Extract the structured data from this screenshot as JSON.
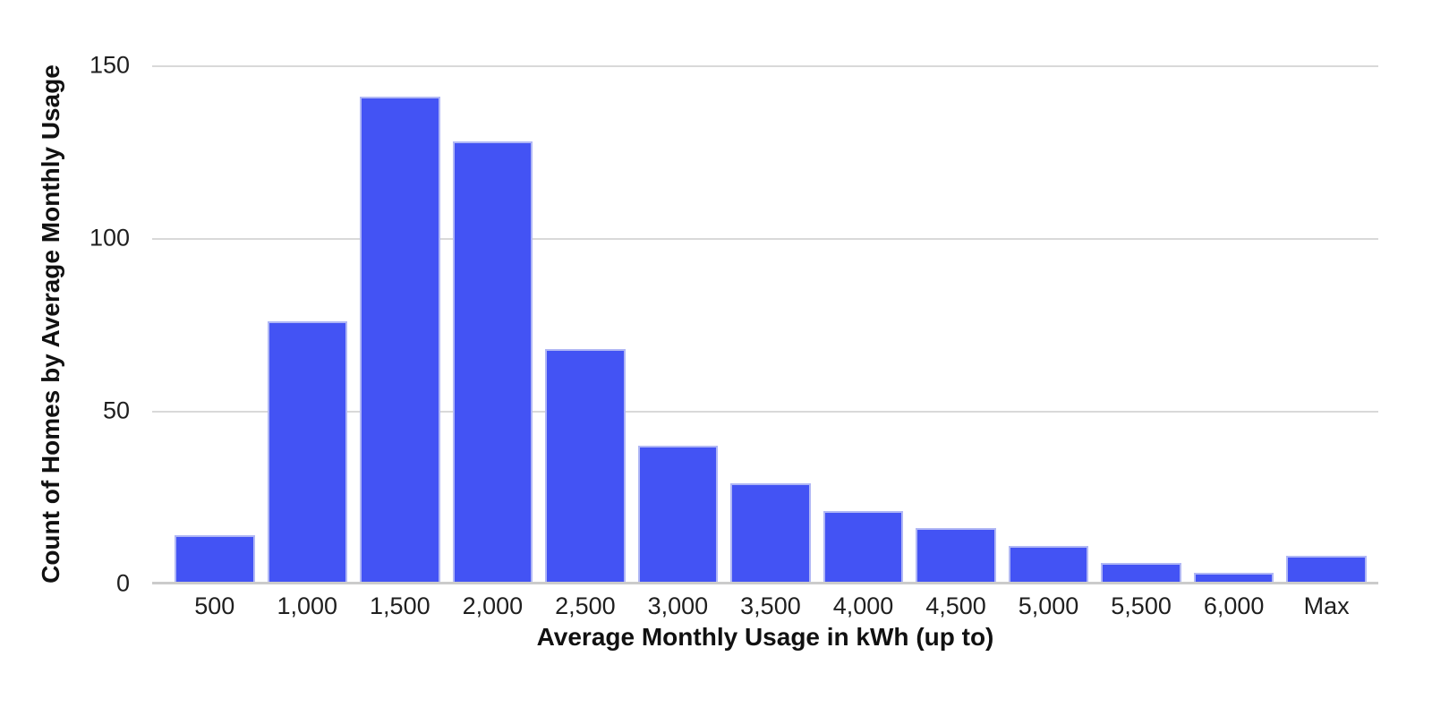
{
  "chart_data": {
    "type": "bar",
    "title": "",
    "categories": [
      "500",
      "1,000",
      "1,500",
      "2,000",
      "2,500",
      "3,000",
      "3,500",
      "4,000",
      "4,500",
      "5,000",
      "5,500",
      "6,000",
      "Max"
    ],
    "values": [
      14,
      76,
      141,
      128,
      68,
      40,
      29,
      21,
      16,
      11,
      6,
      3,
      8
    ],
    "xlabel": "Average Monthly Usage in kWh (up to)",
    "ylabel": "Count of Homes by Average Monthly Usage",
    "ylim": [
      0,
      150
    ],
    "yticks": [
      0,
      50,
      100,
      150
    ],
    "ytick_labels": [
      "0",
      "50",
      "100",
      "150"
    ],
    "legend": "none",
    "grid": "horizontal",
    "colors": {
      "bar_fill": "#4353f4",
      "bar_border": "#b0b7f5",
      "gridline": "#d9d9d9",
      "axis_line": "#cbcbcb",
      "tick_text": "#1f1f1f",
      "axis_title_text": "#111111",
      "background": "#ffffff"
    }
  }
}
